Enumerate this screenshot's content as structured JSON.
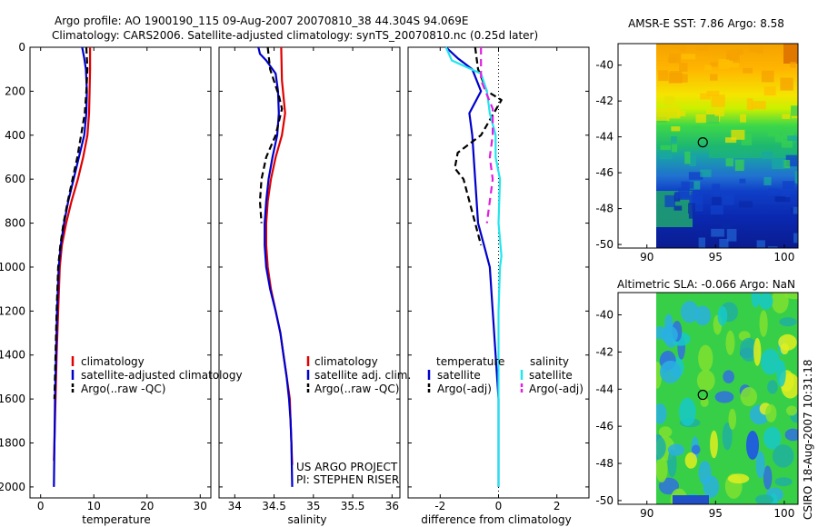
{
  "figure": {
    "title_line1": "Argo profile: AO 1900190_115 09-Aug-2007 20070810_38 44.304S 94.069E",
    "title_line2": "Climatology: CARS2006. Satellite-adjusted climatology: synTS_20070810.nc (0.25d later)",
    "side_label": "CSIRO 18-Aug-2007 10:31:18",
    "project_line1": "US ARGO PROJECT",
    "project_line2": "PI: STEPHEN RISER"
  },
  "colors": {
    "climatology": "#e00000",
    "satellite": "#0000cc",
    "argo": "#000000",
    "sal_satellite": "#22e5ee",
    "sal_argo": "#e020e0"
  },
  "chart_data": [
    {
      "type": "line",
      "id": "temperature",
      "xlabel": "temperature",
      "ylabel": "",
      "xlim": [
        -2,
        32
      ],
      "ylim": [
        2050,
        0
      ],
      "y_reversed": true,
      "xticks": [
        0,
        10,
        20,
        30
      ],
      "yticks": [
        0,
        200,
        400,
        600,
        800,
        1000,
        1200,
        1400,
        1600,
        1800,
        2000
      ],
      "legend": {
        "position": "lower-right",
        "entries": [
          "climatology",
          "satellite-adjusted climatology",
          "Argo(..raw -QC)"
        ]
      },
      "series": [
        {
          "name": "climatology",
          "color": "#e00000",
          "dash": "",
          "points": [
            [
              9.3,
              0
            ],
            [
              9.3,
              100
            ],
            [
              9.2,
              200
            ],
            [
              9.1,
              300
            ],
            [
              8.8,
              400
            ],
            [
              8.0,
              500
            ],
            [
              7.0,
              600
            ],
            [
              5.8,
              700
            ],
            [
              4.8,
              800
            ],
            [
              4.0,
              900
            ],
            [
              3.6,
              1000
            ],
            [
              3.3,
              1200
            ],
            [
              3.0,
              1400
            ],
            [
              2.8,
              1600
            ],
            [
              2.6,
              1800
            ],
            [
              2.5,
              1880
            ]
          ]
        },
        {
          "name": "satellite-adjusted climatology",
          "color": "#0000cc",
          "dash": "",
          "points": [
            [
              7.8,
              0
            ],
            [
              8.2,
              50
            ],
            [
              8.5,
              100
            ],
            [
              8.7,
              200
            ],
            [
              8.6,
              300
            ],
            [
              8.2,
              400
            ],
            [
              7.2,
              500
            ],
            [
              6.2,
              600
            ],
            [
              5.2,
              700
            ],
            [
              4.4,
              800
            ],
            [
              3.8,
              900
            ],
            [
              3.4,
              1000
            ],
            [
              3.1,
              1200
            ],
            [
              2.9,
              1400
            ],
            [
              2.7,
              1600
            ],
            [
              2.6,
              1800
            ],
            [
              2.5,
              2000
            ]
          ]
        },
        {
          "name": "Argo(..raw -QC)",
          "color": "#000000",
          "dash": "7 4",
          "points": [
            [
              8.6,
              0
            ],
            [
              8.8,
              100
            ],
            [
              8.6,
              200
            ],
            [
              8.3,
              300
            ],
            [
              7.6,
              400
            ],
            [
              6.9,
              500
            ],
            [
              6.0,
              600
            ],
            [
              5.1,
              700
            ],
            [
              4.3,
              800
            ],
            [
              3.7,
              900
            ],
            [
              3.3,
              1000
            ],
            [
              3.0,
              1200
            ],
            [
              2.8,
              1400
            ],
            [
              2.6,
              1600
            ]
          ]
        }
      ]
    },
    {
      "type": "line",
      "id": "salinity",
      "xlabel": "salinity",
      "ylabel": "",
      "xlim": [
        33.8,
        36.1
      ],
      "ylim": [
        2050,
        0
      ],
      "y_reversed": true,
      "xticks": [
        34,
        34.5,
        35,
        35.5,
        36
      ],
      "yticks": [
        0,
        200,
        400,
        600,
        800,
        1000,
        1200,
        1400,
        1600,
        1800,
        2000
      ],
      "legend": {
        "position": "lower-right",
        "entries": [
          "climatology",
          "satellite adj. clim.",
          "Argo(..raw -QC)"
        ]
      },
      "series": [
        {
          "name": "climatology",
          "color": "#e00000",
          "dash": "",
          "points": [
            [
              34.59,
              0
            ],
            [
              34.6,
              150
            ],
            [
              34.64,
              300
            ],
            [
              34.6,
              400
            ],
            [
              34.52,
              500
            ],
            [
              34.46,
              600
            ],
            [
              34.42,
              700
            ],
            [
              34.4,
              800
            ],
            [
              34.4,
              900
            ],
            [
              34.42,
              1000
            ],
            [
              34.46,
              1100
            ],
            [
              34.52,
              1200
            ],
            [
              34.58,
              1300
            ],
            [
              34.62,
              1400
            ],
            [
              34.66,
              1500
            ],
            [
              34.7,
              1600
            ],
            [
              34.71,
              1700
            ],
            [
              34.72,
              1800
            ],
            [
              34.73,
              1900
            ]
          ]
        },
        {
          "name": "satellite adj. clim.",
          "color": "#0000cc",
          "dash": "",
          "points": [
            [
              34.3,
              0
            ],
            [
              34.32,
              30
            ],
            [
              34.4,
              60
            ],
            [
              34.52,
              120
            ],
            [
              34.55,
              200
            ],
            [
              34.56,
              300
            ],
            [
              34.54,
              400
            ],
            [
              34.48,
              500
            ],
            [
              34.43,
              600
            ],
            [
              34.4,
              700
            ],
            [
              34.38,
              800
            ],
            [
              34.38,
              900
            ],
            [
              34.4,
              1000
            ],
            [
              34.45,
              1100
            ],
            [
              34.52,
              1200
            ],
            [
              34.58,
              1300
            ],
            [
              34.62,
              1400
            ],
            [
              34.66,
              1500
            ],
            [
              34.69,
              1600
            ],
            [
              34.71,
              1700
            ],
            [
              34.72,
              1800
            ],
            [
              34.73,
              2000
            ]
          ]
        },
        {
          "name": "Argo(..raw -QC)",
          "color": "#000000",
          "dash": "7 4",
          "points": [
            [
              34.42,
              0
            ],
            [
              34.45,
              100
            ],
            [
              34.56,
              220
            ],
            [
              34.6,
              280
            ],
            [
              34.52,
              400
            ],
            [
              34.4,
              500
            ],
            [
              34.34,
              600
            ],
            [
              34.32,
              700
            ],
            [
              34.34,
              800
            ]
          ]
        }
      ]
    },
    {
      "type": "line",
      "id": "difference",
      "xlabel": "difference from climatology",
      "ylabel": "",
      "xlim": [
        -3.1,
        3.1
      ],
      "ylim": [
        2050,
        0
      ],
      "y_reversed": true,
      "xticks": [
        -2,
        0,
        2
      ],
      "yticks": [
        0,
        200,
        400,
        600,
        800,
        1000,
        1200,
        1400,
        1600,
        1800,
        2000
      ],
      "zero_line": 0,
      "legend": {
        "position": "lower",
        "groups": [
          {
            "heading": "temperature",
            "entries": [
              "satellite",
              "Argo(-adj)"
            ]
          },
          {
            "heading": "salinity",
            "entries": [
              "satellite",
              "Argo(-adj)"
            ]
          }
        ]
      },
      "series": [
        {
          "name": "satellite",
          "group": "temperature",
          "color": "#0000cc",
          "dash": "",
          "points": [
            [
              -1.8,
              0
            ],
            [
              -1.4,
              50
            ],
            [
              -0.9,
              100
            ],
            [
              -0.6,
              200
            ],
            [
              -1.0,
              300
            ],
            [
              -0.9,
              400
            ],
            [
              -0.8,
              600
            ],
            [
              -0.7,
              800
            ],
            [
              -0.5,
              900
            ],
            [
              -0.3,
              1000
            ],
            [
              -0.2,
              1200
            ],
            [
              -0.1,
              1400
            ],
            [
              0,
              1600
            ],
            [
              0,
              1800
            ],
            [
              0,
              2000
            ]
          ]
        },
        {
          "name": "Argo(-adj)",
          "group": "temperature",
          "color": "#000000",
          "dash": "7 4",
          "points": [
            [
              -0.8,
              0
            ],
            [
              -0.7,
              100
            ],
            [
              -0.4,
              200
            ],
            [
              0.1,
              240
            ],
            [
              -0.6,
              400
            ],
            [
              -1.4,
              480
            ],
            [
              -1.5,
              550
            ],
            [
              -1.2,
              600
            ],
            [
              -0.9,
              750
            ],
            [
              -0.6,
              900
            ]
          ]
        },
        {
          "name": "satellite",
          "group": "salinity",
          "color": "#22e5ee",
          "dash": "",
          "points": [
            [
              -1.8,
              0
            ],
            [
              -1.6,
              60
            ],
            [
              -0.6,
              120
            ],
            [
              -0.4,
              200
            ],
            [
              -0.3,
              300
            ],
            [
              -0.1,
              400
            ],
            [
              -0.1,
              500
            ],
            [
              0.05,
              600
            ],
            [
              0,
              800
            ],
            [
              0.1,
              950
            ],
            [
              0.05,
              1000
            ],
            [
              0,
              1200
            ],
            [
              0,
              1600
            ],
            [
              0,
              2000
            ]
          ]
        },
        {
          "name": "Argo(-adj)",
          "group": "salinity",
          "color": "#e020e0",
          "dash": "8 5",
          "points": [
            [
              -0.6,
              0
            ],
            [
              -0.6,
              150
            ],
            [
              -0.2,
              280
            ],
            [
              -0.2,
              400
            ],
            [
              -0.3,
              500
            ],
            [
              -0.2,
              600
            ],
            [
              -0.3,
              700
            ],
            [
              -0.4,
              800
            ]
          ]
        }
      ]
    },
    {
      "type": "heatmap",
      "id": "sst-map",
      "title": "AMSR-E SST: 7.86 Argo: 8.58",
      "xlim": [
        87.9,
        101
      ],
      "ylim": [
        -50.2,
        -38.8
      ],
      "xticks": [
        90,
        95,
        100
      ],
      "yticks": [
        -40,
        -42,
        -44,
        -46,
        -48,
        -50
      ],
      "data_extent": {
        "x": [
          90,
          101
        ],
        "y": [
          -50.2,
          -38.8
        ]
      },
      "marker": {
        "lon": 94.069,
        "lat": -44.304,
        "shape": "circle"
      }
    },
    {
      "type": "heatmap",
      "id": "sla-map",
      "title": "Altimetric SLA: -0.066 Argo: NaN",
      "xlim": [
        87.9,
        101
      ],
      "ylim": [
        -50.2,
        -38.8
      ],
      "xticks": [
        90,
        95,
        100
      ],
      "yticks": [
        -40,
        -42,
        -44,
        -46,
        -48,
        -50
      ],
      "data_extent": {
        "x": [
          90,
          101
        ],
        "y": [
          -50.2,
          -38.8
        ]
      },
      "marker": {
        "lon": 94.069,
        "lat": -44.304,
        "shape": "circle"
      }
    }
  ]
}
